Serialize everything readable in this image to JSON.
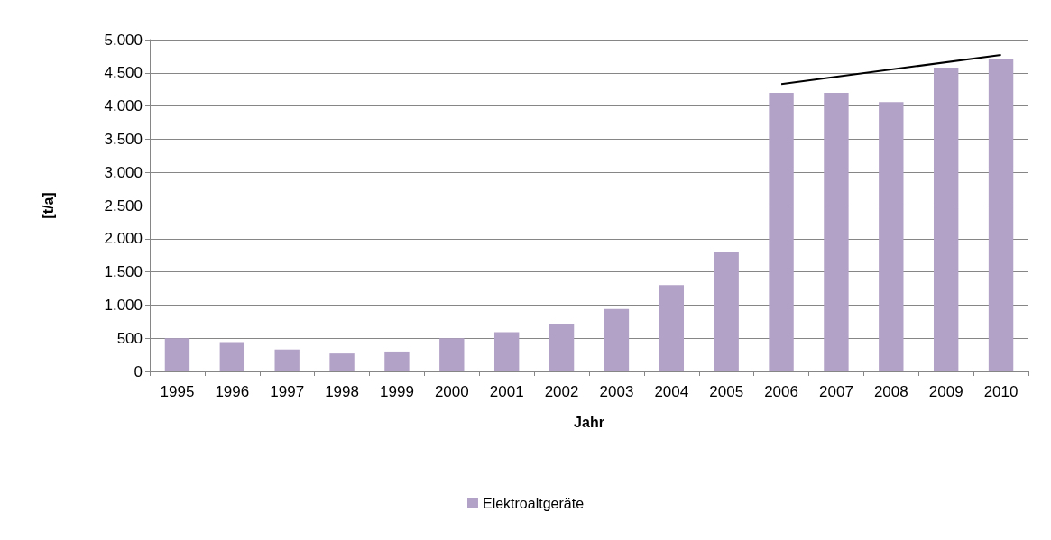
{
  "chart_data": {
    "type": "bar",
    "xlabel": "Jahr",
    "ylabel": "[t/a]",
    "categories": [
      "1995",
      "1996",
      "1997",
      "1998",
      "1999",
      "2000",
      "2001",
      "2002",
      "2003",
      "2004",
      "2005",
      "2006",
      "2007",
      "2008",
      "2009",
      "2010"
    ],
    "series": [
      {
        "name": "Elektroaltgeräte",
        "color": "#b3a2c7",
        "values": [
          500,
          440,
          330,
          270,
          300,
          500,
          590,
          720,
          940,
          1300,
          1800,
          4200,
          4200,
          4060,
          4580,
          4700
        ]
      },
      {
        "type": "line",
        "color": "#000000",
        "values": [
          null,
          null,
          null,
          null,
          null,
          null,
          null,
          null,
          null,
          null,
          null,
          4330,
          null,
          null,
          null,
          4770
        ]
      }
    ],
    "ylim": [
      0,
      5000
    ],
    "yticks": [
      {
        "value": 0,
        "label": "0"
      },
      {
        "value": 500,
        "label": "500"
      },
      {
        "value": 1000,
        "label": "1.000"
      },
      {
        "value": 1500,
        "label": "1.500"
      },
      {
        "value": 2000,
        "label": "2.000"
      },
      {
        "value": 2500,
        "label": "2.500"
      },
      {
        "value": 3000,
        "label": "3.000"
      },
      {
        "value": 3500,
        "label": "3.500"
      },
      {
        "value": 4000,
        "label": "4.000"
      },
      {
        "value": 4500,
        "label": "4.500"
      },
      {
        "value": 5000,
        "label": "5.000"
      }
    ],
    "grid": "y",
    "legend": "bottom",
    "marker": "none"
  }
}
